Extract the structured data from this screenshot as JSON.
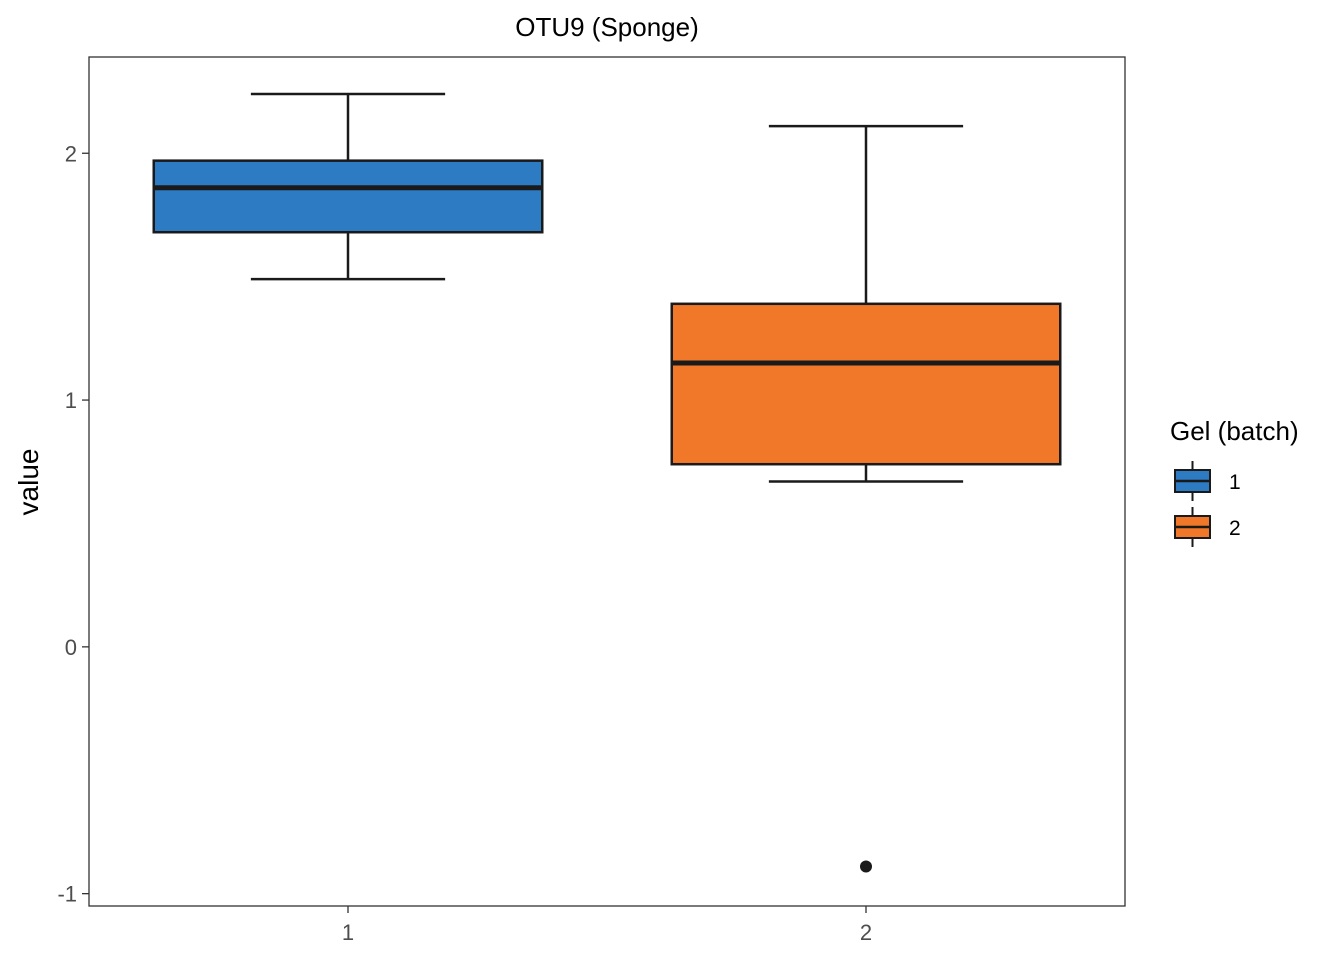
{
  "chart_data": {
    "type": "boxplot",
    "title": "OTU9 (Sponge)",
    "xlabel": "",
    "ylabel": "value",
    "categories": [
      "1",
      "2"
    ],
    "ylim": [
      -1.05,
      2.39
    ],
    "yticks": [
      -1,
      0,
      1,
      2
    ],
    "ytick_labels": [
      "-1",
      "0",
      "1",
      "2"
    ],
    "grid": false,
    "legend": {
      "title": "Gel (batch)",
      "position": "right",
      "items": [
        {
          "label": "1",
          "color": "#2d7bc3"
        },
        {
          "label": "2",
          "color": "#f07828"
        }
      ]
    },
    "boxes": [
      {
        "category": "1",
        "color": "#2d7bc3",
        "whisker_low": 1.49,
        "q1": 1.68,
        "median": 1.86,
        "q3": 1.97,
        "whisker_high": 2.24,
        "outliers": []
      },
      {
        "category": "2",
        "color": "#f07828",
        "whisker_low": 0.67,
        "q1": 0.74,
        "median": 1.15,
        "q3": 1.39,
        "whisker_high": 2.11,
        "outliers": [
          -0.89
        ]
      }
    ]
  }
}
